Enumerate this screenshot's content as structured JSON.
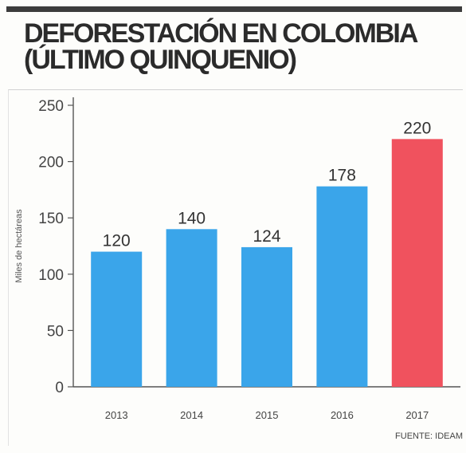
{
  "title_line1": "DEFORESTACIÓN EN COLOMBIA",
  "title_line2": "(ÚLTIMO QUINQUENIO)",
  "source": "FUENTE: IDEAM",
  "chart_data": {
    "type": "bar",
    "title": "DEFORESTACIÓN EN COLOMBIA (ÚLTIMO QUINQUENIO)",
    "xlabel": "",
    "ylabel": "Miles de hectáreas",
    "categories": [
      "2013",
      "2014",
      "2015",
      "2016",
      "2017"
    ],
    "values": [
      120,
      140,
      124,
      178,
      220
    ],
    "ylim": [
      0,
      250
    ],
    "yticks": [
      0,
      50,
      100,
      150,
      200,
      250
    ],
    "grid": false,
    "legend": "none",
    "bar_colors": [
      "#3aa5ea",
      "#3aa5ea",
      "#3aa5ea",
      "#3aa5ea",
      "#f0525e"
    ]
  },
  "colors": {
    "title": "#2b2b2b",
    "bar": "#3aa5ea",
    "highlight_bar": "#f0525e",
    "axis": "#555555"
  }
}
